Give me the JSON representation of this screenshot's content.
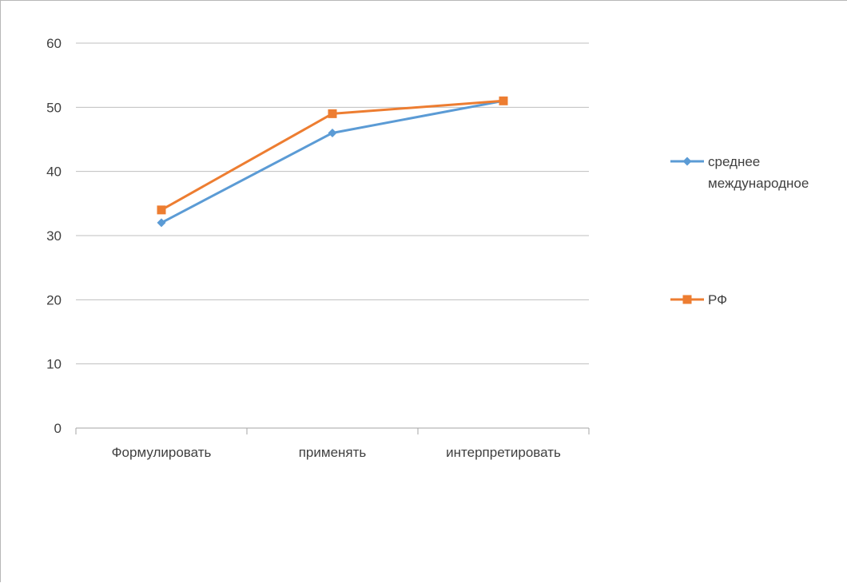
{
  "chart_data": {
    "type": "line",
    "categories": [
      "Формулировать",
      "применять",
      "интерпретировать"
    ],
    "series": [
      {
        "name": "среднее международное",
        "values": [
          32,
          46,
          51
        ],
        "color": "#5B9BD5",
        "marker": "diamond"
      },
      {
        "name": "РФ",
        "values": [
          34,
          49,
          51
        ],
        "color": "#ED7D31",
        "marker": "square"
      }
    ],
    "ylim": [
      0,
      60
    ],
    "yticks": [
      0,
      10,
      20,
      30,
      40,
      50,
      60
    ],
    "grid": true,
    "legend": "right",
    "legend_lines": [
      [
        "среднее",
        "международное"
      ],
      [
        "РФ"
      ]
    ]
  }
}
